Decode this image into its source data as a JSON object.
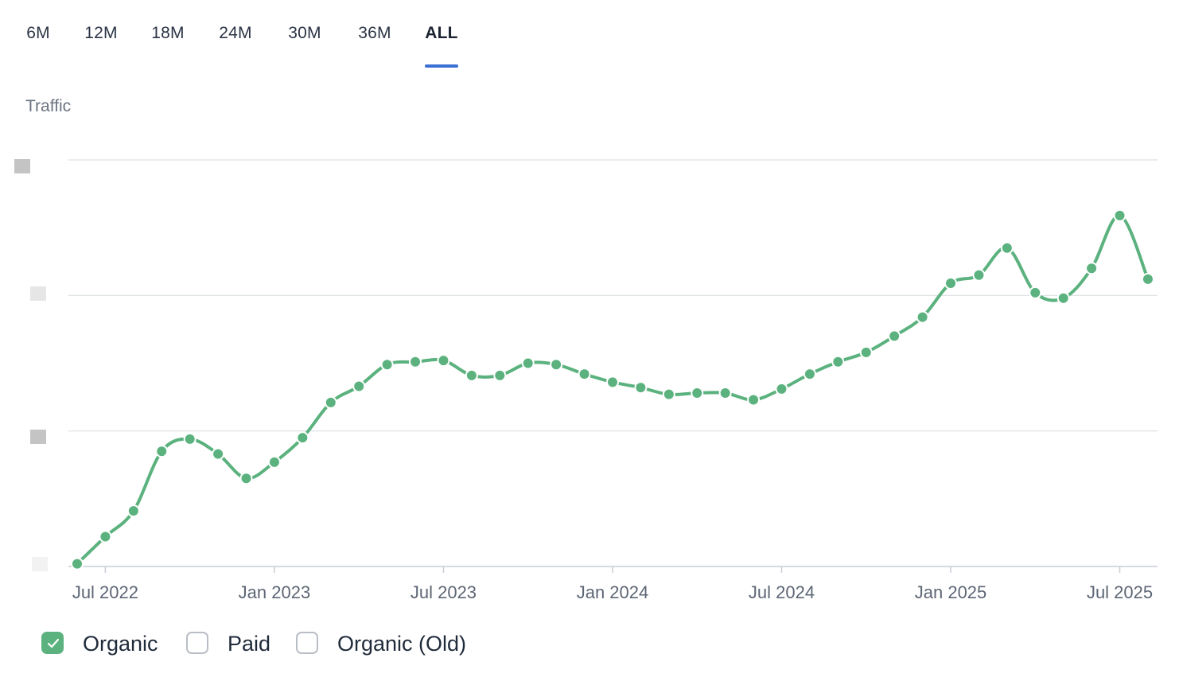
{
  "tabs": [
    {
      "label": "6M",
      "active": false
    },
    {
      "label": "12M",
      "active": false
    },
    {
      "label": "18M",
      "active": false
    },
    {
      "label": "24M",
      "active": false
    },
    {
      "label": "30M",
      "active": false
    },
    {
      "label": "36M",
      "active": false
    },
    {
      "label": "ALL",
      "active": true
    }
  ],
  "accent_color": "#3b6fd4",
  "series_color": "#5bb27e",
  "chart_title": "Traffic",
  "chart_data": {
    "type": "line",
    "title": "Traffic",
    "xlabel": "",
    "ylabel": "",
    "ylim": [
      0,
      300
    ],
    "yticks": [
      0,
      100,
      200,
      300
    ],
    "ytick_labels_note": "y-axis tick labels are redacted (grey boxes)",
    "xticks": [
      "Jul 2022",
      "Jan 2023",
      "Jul 2023",
      "Jan 2024",
      "Jul 2024",
      "Jan 2025",
      "Jul 2025"
    ],
    "x": [
      "2022-06",
      "2022-07",
      "2022-08",
      "2022-09",
      "2022-10",
      "2022-11",
      "2022-12",
      "2023-01",
      "2023-02",
      "2023-03",
      "2023-04",
      "2023-05",
      "2023-06",
      "2023-07",
      "2023-08",
      "2023-09",
      "2023-10",
      "2023-11",
      "2023-12",
      "2024-01",
      "2024-02",
      "2024-03",
      "2024-04",
      "2024-05",
      "2024-06",
      "2024-07",
      "2024-08",
      "2024-09",
      "2024-10",
      "2024-11",
      "2024-12",
      "2025-01",
      "2025-02",
      "2025-03",
      "2025-04",
      "2025-05",
      "2025-06",
      "2025-07",
      "2025-08"
    ],
    "series": [
      {
        "name": "Organic",
        "values": [
          2,
          22,
          41,
          85,
          94,
          83,
          65,
          77,
          95,
          121,
          133,
          149,
          151,
          152,
          141,
          141,
          150,
          149,
          142,
          136,
          132,
          127,
          128,
          128,
          123,
          131,
          142,
          151,
          158,
          170,
          184,
          209,
          215,
          235,
          202,
          198,
          220,
          259,
          212
        ]
      }
    ],
    "legend": [
      {
        "name": "Organic",
        "checked": true
      },
      {
        "name": "Paid",
        "checked": false
      },
      {
        "name": "Organic (Old)",
        "checked": false
      }
    ],
    "grid": true
  }
}
